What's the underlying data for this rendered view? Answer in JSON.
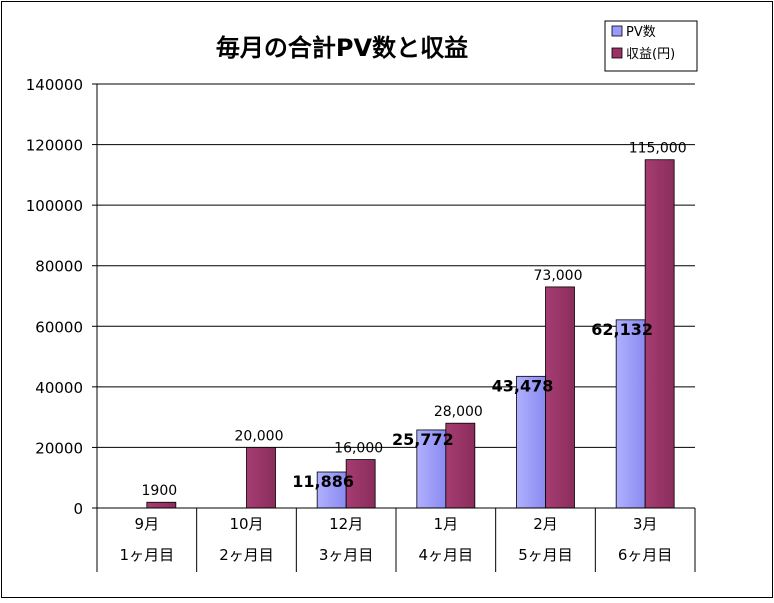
{
  "chart_data": {
    "type": "bar",
    "title": "毎月の合計PV数と収益",
    "categories": [
      "9月",
      "10月",
      "12月",
      "1月",
      "2月",
      "3月"
    ],
    "category_sublabels": [
      "1ヶ月目",
      "2ヶ月目",
      "3ヶ月目",
      "4ヶ月目",
      "5ヶ月目",
      "6ヶ月目"
    ],
    "series": [
      {
        "name": "PV数",
        "color": "#9999ff",
        "values": [
          null,
          null,
          11886,
          25772,
          43478,
          62132
        ],
        "labels": [
          "",
          "",
          "11,886",
          "25,772",
          "43,478",
          "62,132"
        ]
      },
      {
        "name": "収益(円)",
        "color": "#993366",
        "values": [
          1900,
          20000,
          16000,
          28000,
          73000,
          115000
        ],
        "labels": [
          "1900",
          "20,000",
          "16,000",
          "28,000",
          "73,000",
          "115,000"
        ]
      }
    ],
    "ylim": [
      0,
      140000
    ],
    "yticks": [
      0,
      20000,
      40000,
      60000,
      80000,
      100000,
      120000,
      140000
    ],
    "ytick_labels": [
      "0",
      "20000",
      "40000",
      "60000",
      "80000",
      "100000",
      "120000",
      "140000"
    ],
    "grid": true,
    "legend_position": "top-right"
  }
}
